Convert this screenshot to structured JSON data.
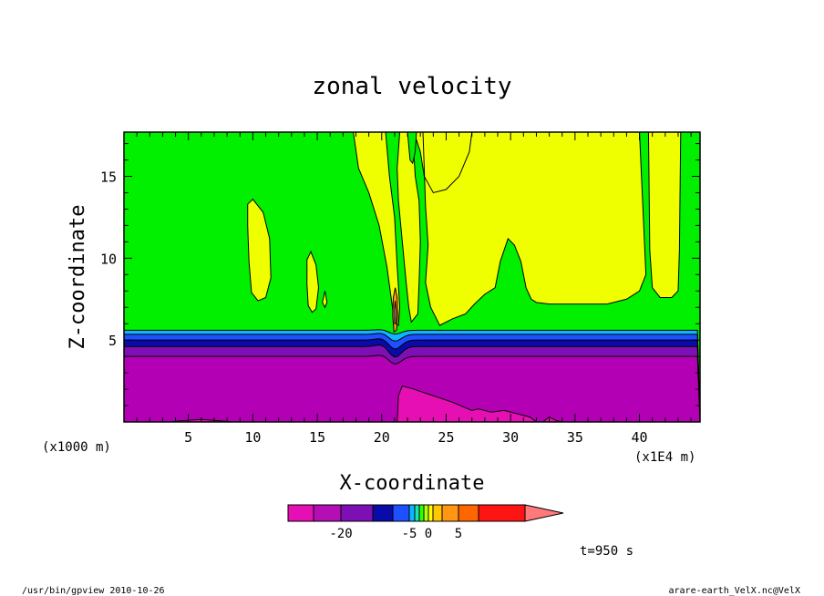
{
  "chart_data": {
    "type": "heatmap",
    "title": "zonal velocity",
    "xlabel": "X-coordinate",
    "ylabel": "Z-coordinate",
    "x_unit_left": "(x1000 m)",
    "x_unit_right": "(x1E4 m)",
    "xlim": [
      0,
      44.7
    ],
    "ylim": [
      0,
      17.7
    ],
    "x_ticks": [
      "5",
      "10",
      "15",
      "20",
      "25",
      "30",
      "35",
      "40"
    ],
    "x_tick_values": [
      5,
      10,
      15,
      20,
      25,
      30,
      35,
      40
    ],
    "y_ticks": [
      "5",
      "10",
      "15"
    ],
    "y_tick_values": [
      5,
      10,
      15
    ],
    "colorbar": {
      "tick_labels": [
        "-20",
        "-5",
        "0",
        "5"
      ],
      "tick_values": [
        -20,
        -5,
        0,
        5
      ],
      "colors": [
        "#e60fb4",
        "#b40fb4",
        "#7d0fb4",
        "#0a0aa8",
        "#1e50ff",
        "#10b4ff",
        "#16e6b4",
        "#33ff00",
        "#b4ff00",
        "#ffff00",
        "#ffc800",
        "#ff9614",
        "#ff6600",
        "#ff1414"
      ],
      "extend_color": "#ff7a7a"
    },
    "layers": {
      "z_magenta_top": 3.3,
      "z_purple_top": 4.0,
      "z_violet_top": 4.6,
      "z_navy_top": 5.0,
      "z_blue_top": 5.35,
      "z_cyan_top": 5.6
    },
    "time_label": "t=950 s"
  },
  "colors": {
    "green": "#00f000",
    "yellow": "#f0ff00",
    "magenta": "#e60fb4",
    "purple": "#b400b4",
    "violet": "#7d0fb4",
    "navy": "#0a0aa8",
    "blue": "#1e50ff",
    "cyan": "#10b4ff"
  },
  "footer": {
    "left": "/usr/bin/gpview  2010-10-26",
    "right": "arare-earth_VelX.nc@VelX"
  }
}
